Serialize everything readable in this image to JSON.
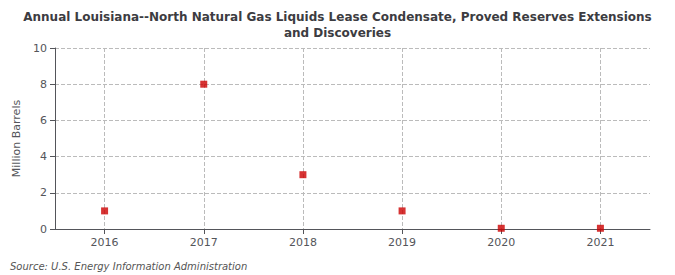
{
  "chart_data": {
    "type": "scatter",
    "title": "Annual Louisiana--North Natural Gas Liquids Lease Condensate, Proved Reserves Extensions\nand Discoveries",
    "y_label": "Million Barrels",
    "annotations": [
      "Source: U.S. Energy Information Administration"
    ],
    "x": [
      2016,
      2017,
      2018,
      2019,
      2020,
      2021
    ],
    "values": [
      1.0,
      8.0,
      3.0,
      1.0,
      0.04,
      0.04
    ],
    "color": "#cc0000",
    "marker": "square",
    "xlim": [
      2015.5,
      2021.5
    ],
    "xticks": [
      2016,
      2017,
      2018,
      2019,
      2020,
      2021
    ],
    "ylim": [
      0,
      10
    ],
    "yticks": [
      0,
      2,
      4,
      6,
      8,
      10
    ],
    "grid": true
  }
}
